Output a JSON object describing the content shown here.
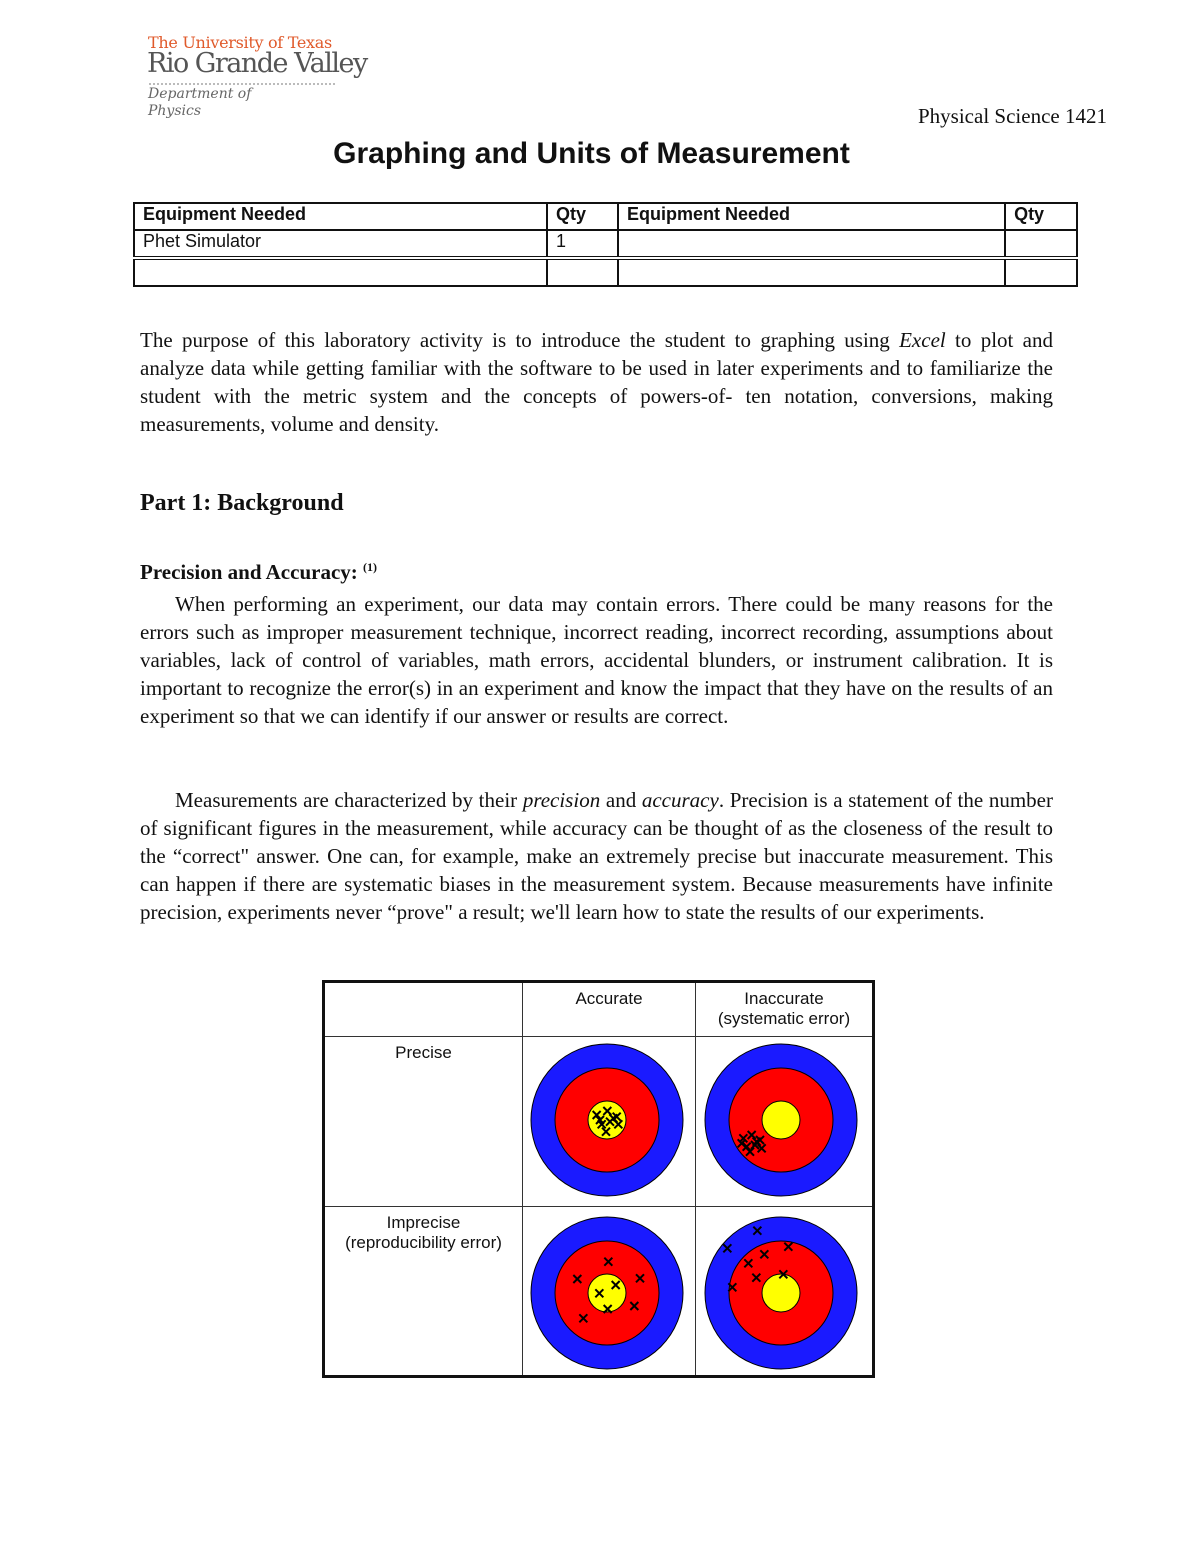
{
  "logo": {
    "line1": "The University of Texas",
    "line2": "Rio Grande Valley",
    "line3": "Department of",
    "line4": "Physics"
  },
  "course": "Physical Science 1421",
  "title": "Graphing and Units of Measurement",
  "equipment_table": {
    "headers": [
      "Equipment Needed",
      "Qty",
      "Equipment Needed",
      "Qty"
    ],
    "rows": [
      [
        "Phet Simulator",
        "1",
        "",
        ""
      ],
      [
        "",
        "",
        "",
        ""
      ]
    ]
  },
  "intro": {
    "before": "The purpose of this laboratory activity is to introduce the student to graphing using ",
    "em": "Excel",
    "after": " to plot and analyze data while getting familiar with the software to be used in later experiments and to familiarize the student with the metric system and the concepts of powers-of- ten notation, conversions, making measurements, volume and density."
  },
  "part1_heading": "Part 1: Background",
  "precision_heading": "Precision and Accuracy:",
  "precision_ref": "(1)",
  "para1": "When performing an experiment, our data may contain errors. There could be many reasons for the errors such as improper measurement technique, incorrect reading, incorrect recording, assumptions about variables, lack of control of variables, math errors, accidental blunders, or instrument calibration. It is important to recognize the error(s) in an experiment and know the impact that they have on the results of an experiment so that we can identify if our answer or results are correct.",
  "para2": {
    "a": "Measurements are characterized by their ",
    "em1": "precision",
    "b": " and ",
    "em2": "accuracy",
    "c": ". Precision is a statement of the number of significant figures in the measurement, while accuracy can be thought of as the closeness of the result to the “correct\" answer. One can, for example, make an extremely precise but inaccurate measurement. This can happen if there are systematic biases in the measurement system. Because measurements have infinite precision, experiments never “prove\" a result; we'll learn how to state the results of our experiments."
  },
  "figure": {
    "col_accurate": "Accurate",
    "col_inaccurate": "Inaccurate",
    "col_inaccurate_sub": "(systematic error)",
    "row_precise": "Precise",
    "row_imprecise": "Imprecise",
    "row_imprecise_sub": "(reproducibility error)",
    "colors": {
      "outer": "#1a1aff",
      "middle": "#ff0000",
      "center": "#ffff00"
    }
  }
}
